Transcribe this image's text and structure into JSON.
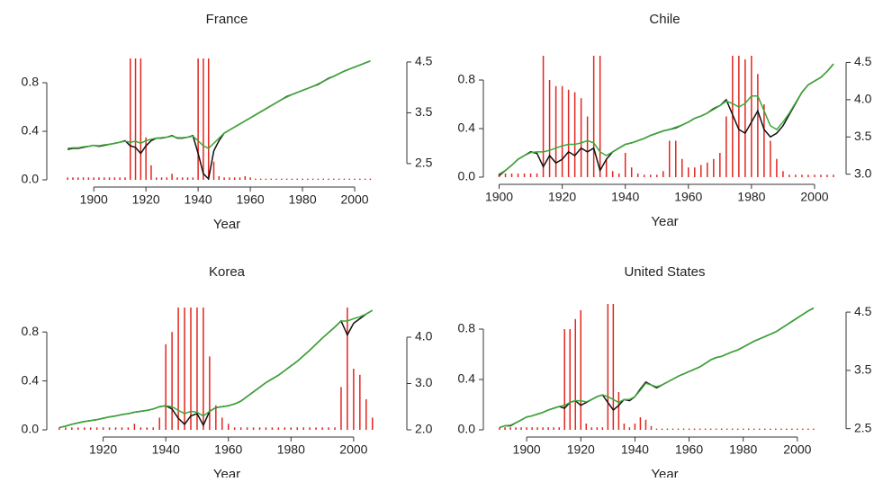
{
  "chart_data": [
    {
      "type": "bar-line",
      "title": "France",
      "x_label": "Year",
      "x": [
        1890,
        1892,
        1894,
        1896,
        1898,
        1900,
        1902,
        1904,
        1906,
        1908,
        1910,
        1912,
        1914,
        1916,
        1918,
        1920,
        1922,
        1924,
        1926,
        1928,
        1930,
        1932,
        1934,
        1936,
        1938,
        1940,
        1942,
        1944,
        1946,
        1948,
        1950,
        1952,
        1954,
        1956,
        1958,
        1960,
        1962,
        1964,
        1966,
        1968,
        1970,
        1972,
        1974,
        1976,
        1978,
        1980,
        1982,
        1984,
        1986,
        1988,
        1990,
        1992,
        1994,
        1996,
        1998,
        2000,
        2002,
        2004,
        2006
      ],
      "xlim": [
        1882,
        2020
      ],
      "xticks": [
        1900,
        1920,
        1940,
        1960,
        1980,
        2000
      ],
      "ylim": [
        0,
        1
      ],
      "yticks": [
        {
          "value": 0,
          "label": "0.0"
        },
        0.4,
        0.8
      ],
      "y2lim": [
        2.18,
        4.57
      ],
      "y2ticks": [
        2.5,
        3.5,
        4.5
      ],
      "series": [
        {
          "type": "bar",
          "color": "#e3261f",
          "values": [
            0.02,
            0.02,
            0.02,
            0.02,
            0.02,
            0.02,
            0.02,
            0.02,
            0.02,
            0.02,
            0.02,
            0.02,
            1,
            1,
            1,
            0.35,
            0.12,
            0.02,
            0.02,
            0.02,
            0.05,
            0.02,
            0.02,
            0.02,
            0.02,
            1,
            1,
            1,
            0.15,
            0.03,
            0.02,
            0.02,
            0.02,
            0.02,
            0.03,
            0.02,
            0.01,
            0.01,
            0.01,
            0.01,
            0.01,
            0.01,
            0.01,
            0.01,
            0.01,
            0.01,
            0.01,
            0.01,
            0.01,
            0.01,
            0.01,
            0.01,
            0.01,
            0.01,
            0.01,
            0.01,
            0.01,
            0.01,
            0.01
          ]
        },
        {
          "type": "line",
          "axis": "y2",
          "color": "#111111",
          "values": [
            2.78,
            2.8,
            2.8,
            2.82,
            2.84,
            2.86,
            2.84,
            2.86,
            2.88,
            2.9,
            2.92,
            2.95,
            2.85,
            2.82,
            2.7,
            2.85,
            2.95,
            3.0,
            3.0,
            3.02,
            3.05,
            3.0,
            3.0,
            3.02,
            3.05,
            2.7,
            2.3,
            2.2,
            2.75,
            2.95,
            3.1,
            3.16,
            3.22,
            3.28,
            3.34,
            3.4,
            3.46,
            3.52,
            3.58,
            3.64,
            3.7,
            3.76,
            3.82,
            3.86,
            3.9,
            3.94,
            3.98,
            4.02,
            4.06,
            4.12,
            4.18,
            4.22,
            4.27,
            4.32,
            4.36,
            4.4,
            4.44,
            4.48,
            4.52
          ]
        },
        {
          "type": "line",
          "axis": "y2",
          "color": "#3aa935",
          "values": [
            2.8,
            2.81,
            2.81,
            2.83,
            2.84,
            2.86,
            2.85,
            2.87,
            2.88,
            2.9,
            2.92,
            2.94,
            2.92,
            2.94,
            2.9,
            2.95,
            2.98,
            3.0,
            3.01,
            3.02,
            3.04,
            3.01,
            3.01,
            3.02,
            3.04,
            2.95,
            2.85,
            2.8,
            2.9,
            3.0,
            3.1,
            3.16,
            3.22,
            3.28,
            3.34,
            3.4,
            3.46,
            3.52,
            3.58,
            3.64,
            3.7,
            3.76,
            3.81,
            3.86,
            3.9,
            3.94,
            3.98,
            4.02,
            4.07,
            4.12,
            4.17,
            4.22,
            4.27,
            4.32,
            4.36,
            4.4,
            4.44,
            4.48,
            4.52
          ]
        }
      ]
    },
    {
      "type": "bar-line",
      "title": "Chile",
      "x_label": "Year",
      "x": [
        1900,
        1902,
        1904,
        1906,
        1908,
        1910,
        1912,
        1914,
        1916,
        1918,
        1920,
        1922,
        1924,
        1926,
        1928,
        1930,
        1932,
        1934,
        1936,
        1938,
        1940,
        1942,
        1944,
        1946,
        1948,
        1950,
        1952,
        1954,
        1956,
        1958,
        1960,
        1962,
        1964,
        1966,
        1968,
        1970,
        1972,
        1974,
        1976,
        1978,
        1980,
        1982,
        1984,
        1986,
        1988,
        1990,
        1992,
        1994,
        1996,
        1998,
        2000,
        2002,
        2004,
        2006
      ],
      "xlim": [
        1895,
        2010
      ],
      "xticks": [
        1900,
        1920,
        1940,
        1960,
        1980,
        2000
      ],
      "ylim": [
        0,
        1
      ],
      "yticks": [
        {
          "value": 0,
          "label": "0.0"
        },
        0.4,
        0.8
      ],
      "y2lim": [
        2.96,
        4.59
      ],
      "y2ticks": [
        {
          "value": 3,
          "label": "3.0"
        },
        3.5,
        {
          "value": 4,
          "label": "4.0"
        },
        4.5
      ],
      "series": [
        {
          "type": "bar",
          "color": "#e3261f",
          "values": [
            0.03,
            0.03,
            0.03,
            0.03,
            0.03,
            0.03,
            0.03,
            1,
            0.8,
            0.75,
            0.75,
            0.72,
            0.7,
            0.65,
            0.5,
            1,
            1,
            0.15,
            0.05,
            0.03,
            0.2,
            0.08,
            0.03,
            0.02,
            0.02,
            0.02,
            0.05,
            0.3,
            0.3,
            0.15,
            0.08,
            0.08,
            0.1,
            0.12,
            0.15,
            0.2,
            0.5,
            1,
            1,
            0.97,
            1,
            0.85,
            0.6,
            0.3,
            0.15,
            0.05,
            0.02,
            0.02,
            0.02,
            0.02,
            0.02,
            0.02,
            0.02,
            0.02
          ]
        },
        {
          "type": "line",
          "axis": "y2",
          "color": "#111111",
          "values": [
            2.98,
            3.05,
            3.12,
            3.2,
            3.25,
            3.3,
            3.28,
            3.1,
            3.25,
            3.15,
            3.2,
            3.3,
            3.25,
            3.35,
            3.3,
            3.35,
            3.05,
            3.2,
            3.3,
            3.35,
            3.4,
            3.42,
            3.45,
            3.48,
            3.52,
            3.55,
            3.58,
            3.6,
            3.62,
            3.66,
            3.7,
            3.75,
            3.78,
            3.82,
            3.88,
            3.92,
            4.0,
            3.8,
            3.6,
            3.55,
            3.7,
            3.85,
            3.6,
            3.5,
            3.55,
            3.65,
            3.8,
            3.95,
            4.1,
            4.2,
            4.25,
            4.3,
            4.38,
            4.48
          ]
        },
        {
          "type": "line",
          "axis": "y2",
          "color": "#3aa935",
          "values": [
            3.0,
            3.05,
            3.12,
            3.2,
            3.25,
            3.29,
            3.3,
            3.3,
            3.32,
            3.35,
            3.38,
            3.4,
            3.4,
            3.42,
            3.45,
            3.42,
            3.3,
            3.25,
            3.3,
            3.35,
            3.4,
            3.42,
            3.45,
            3.48,
            3.52,
            3.55,
            3.58,
            3.6,
            3.63,
            3.66,
            3.7,
            3.75,
            3.78,
            3.82,
            3.87,
            3.92,
            3.98,
            3.95,
            3.9,
            3.95,
            4.05,
            4.05,
            3.85,
            3.65,
            3.6,
            3.7,
            3.82,
            3.96,
            4.1,
            4.2,
            4.25,
            4.3,
            4.38,
            4.48
          ]
        }
      ]
    },
    {
      "type": "bar-line",
      "title": "Korea",
      "x_label": "Year",
      "x": [
        1906,
        1908,
        1910,
        1912,
        1914,
        1916,
        1918,
        1920,
        1922,
        1924,
        1926,
        1928,
        1930,
        1932,
        1934,
        1936,
        1938,
        1940,
        1942,
        1944,
        1946,
        1948,
        1950,
        1952,
        1954,
        1956,
        1958,
        1960,
        1962,
        1964,
        1966,
        1968,
        1970,
        1972,
        1974,
        1976,
        1978,
        1980,
        1982,
        1984,
        1986,
        1988,
        1990,
        1992,
        1994,
        1996,
        1998,
        2000,
        2002,
        2004,
        2006
      ],
      "xlim": [
        1902,
        2017
      ],
      "xticks": [
        1920,
        1940,
        1960,
        1980,
        2000
      ],
      "ylim": [
        0,
        1
      ],
      "yticks": [
        {
          "value": 0,
          "label": "0.0"
        },
        0.4,
        0.8
      ],
      "y2lim": [
        2,
        4.64
      ],
      "y2ticks": [
        {
          "value": 2,
          "label": "2.0"
        },
        {
          "value": 3,
          "label": "3.0"
        },
        {
          "value": 4,
          "label": "4.0"
        }
      ],
      "series": [
        {
          "type": "bar",
          "color": "#e3261f",
          "values": [
            0.02,
            0.02,
            0.02,
            0.02,
            0.02,
            0.02,
            0.02,
            0.02,
            0.02,
            0.02,
            0.02,
            0.02,
            0.05,
            0.02,
            0.02,
            0.02,
            0.1,
            0.7,
            0.8,
            1,
            1,
            1,
            1,
            1,
            0.6,
            0.2,
            0.1,
            0.05,
            0.02,
            0.02,
            0.02,
            0.02,
            0.02,
            0.02,
            0.02,
            0.02,
            0.02,
            0.02,
            0.02,
            0.02,
            0.02,
            0.02,
            0.02,
            0.02,
            0.02,
            0.35,
            1,
            0.5,
            0.45,
            0.25,
            0.1
          ]
        },
        {
          "type": "line",
          "axis": "y2",
          "color": "#111111",
          "values": [
            2.05,
            2.08,
            2.12,
            2.15,
            2.18,
            2.2,
            2.22,
            2.25,
            2.28,
            2.3,
            2.33,
            2.35,
            2.38,
            2.4,
            2.42,
            2.45,
            2.5,
            2.52,
            2.45,
            2.25,
            2.12,
            2.3,
            2.35,
            2.1,
            2.4,
            2.48,
            2.5,
            2.52,
            2.56,
            2.62,
            2.72,
            2.82,
            2.92,
            3.02,
            3.1,
            3.18,
            3.28,
            3.38,
            3.48,
            3.6,
            3.72,
            3.85,
            3.98,
            4.1,
            4.22,
            4.35,
            4.05,
            4.3,
            4.4,
            4.5,
            4.58
          ]
        },
        {
          "type": "line",
          "axis": "y2",
          "color": "#3aa935",
          "values": [
            2.05,
            2.08,
            2.12,
            2.15,
            2.18,
            2.2,
            2.22,
            2.25,
            2.28,
            2.3,
            2.33,
            2.35,
            2.38,
            2.4,
            2.42,
            2.45,
            2.5,
            2.52,
            2.5,
            2.42,
            2.35,
            2.4,
            2.38,
            2.3,
            2.4,
            2.48,
            2.5,
            2.52,
            2.56,
            2.62,
            2.72,
            2.82,
            2.92,
            3.02,
            3.1,
            3.18,
            3.28,
            3.38,
            3.48,
            3.6,
            3.72,
            3.85,
            3.98,
            4.1,
            4.22,
            4.35,
            4.35,
            4.4,
            4.44,
            4.5,
            4.58
          ]
        }
      ]
    },
    {
      "type": "bar-line",
      "title": "United States",
      "x_label": "Year",
      "x": [
        1890,
        1892,
        1894,
        1896,
        1898,
        1900,
        1902,
        1904,
        1906,
        1908,
        1910,
        1912,
        1914,
        1916,
        1918,
        1920,
        1922,
        1924,
        1926,
        1928,
        1930,
        1932,
        1934,
        1936,
        1938,
        1940,
        1942,
        1944,
        1946,
        1948,
        1950,
        1952,
        1954,
        1956,
        1958,
        1960,
        1962,
        1964,
        1966,
        1968,
        1970,
        1972,
        1974,
        1976,
        1978,
        1980,
        1982,
        1984,
        1986,
        1988,
        1990,
        1992,
        1994,
        1996,
        1998,
        2000,
        2002,
        2004,
        2006
      ],
      "xlim": [
        1884,
        2018
      ],
      "xticks": [
        1900,
        1920,
        1940,
        1960,
        1980,
        2000
      ],
      "ylim": [
        0,
        1
      ],
      "yticks": [
        {
          "value": 0,
          "label": "0.0"
        },
        0.4,
        0.8
      ],
      "y2lim": [
        2.48,
        4.64
      ],
      "y2ticks": [
        2.5,
        3.5,
        4.5
      ],
      "series": [
        {
          "type": "bar",
          "color": "#e3261f",
          "values": [
            0.02,
            0.02,
            0.02,
            0.02,
            0.02,
            0.02,
            0.02,
            0.02,
            0.02,
            0.02,
            0.02,
            0.02,
            0.8,
            0.8,
            0.88,
            0.95,
            0.05,
            0.02,
            0.02,
            0.02,
            1,
            1,
            0.3,
            0.05,
            0.02,
            0.05,
            0.1,
            0.08,
            0.03,
            0.01,
            0.01,
            0.01,
            0.01,
            0.01,
            0.01,
            0.01,
            0.01,
            0.01,
            0.01,
            0.01,
            0.01,
            0.01,
            0.01,
            0.01,
            0.01,
            0.01,
            0.01,
            0.01,
            0.01,
            0.01,
            0.01,
            0.01,
            0.01,
            0.01,
            0.01,
            0.01,
            0.01,
            0.01,
            0.01
          ]
        },
        {
          "type": "line",
          "axis": "y2",
          "color": "#111111",
          "values": [
            2.52,
            2.55,
            2.55,
            2.6,
            2.65,
            2.7,
            2.72,
            2.75,
            2.78,
            2.82,
            2.85,
            2.88,
            2.85,
            2.95,
            2.98,
            2.9,
            2.95,
            3.0,
            3.05,
            3.08,
            2.95,
            2.82,
            2.9,
            3.0,
            2.98,
            3.05,
            3.18,
            3.3,
            3.25,
            3.2,
            3.25,
            3.3,
            3.35,
            3.4,
            3.44,
            3.48,
            3.52,
            3.56,
            3.62,
            3.68,
            3.72,
            3.74,
            3.78,
            3.82,
            3.85,
            3.9,
            3.95,
            4.0,
            4.04,
            4.08,
            4.12,
            4.16,
            4.22,
            4.28,
            4.34,
            4.4,
            4.46,
            4.52,
            4.57
          ]
        },
        {
          "type": "line",
          "axis": "y2",
          "color": "#3aa935",
          "values": [
            2.52,
            2.55,
            2.56,
            2.6,
            2.65,
            2.7,
            2.72,
            2.75,
            2.78,
            2.82,
            2.85,
            2.88,
            2.9,
            2.95,
            2.98,
            2.98,
            2.96,
            3.0,
            3.05,
            3.08,
            3.05,
            3.0,
            2.95,
            3.0,
            3.0,
            3.05,
            3.16,
            3.28,
            3.25,
            3.22,
            3.25,
            3.3,
            3.35,
            3.4,
            3.44,
            3.48,
            3.52,
            3.56,
            3.62,
            3.68,
            3.72,
            3.74,
            3.78,
            3.82,
            3.85,
            3.9,
            3.95,
            4.0,
            4.04,
            4.08,
            4.12,
            4.16,
            4.22,
            4.28,
            4.34,
            4.4,
            4.46,
            4.52,
            4.57
          ]
        }
      ]
    }
  ]
}
